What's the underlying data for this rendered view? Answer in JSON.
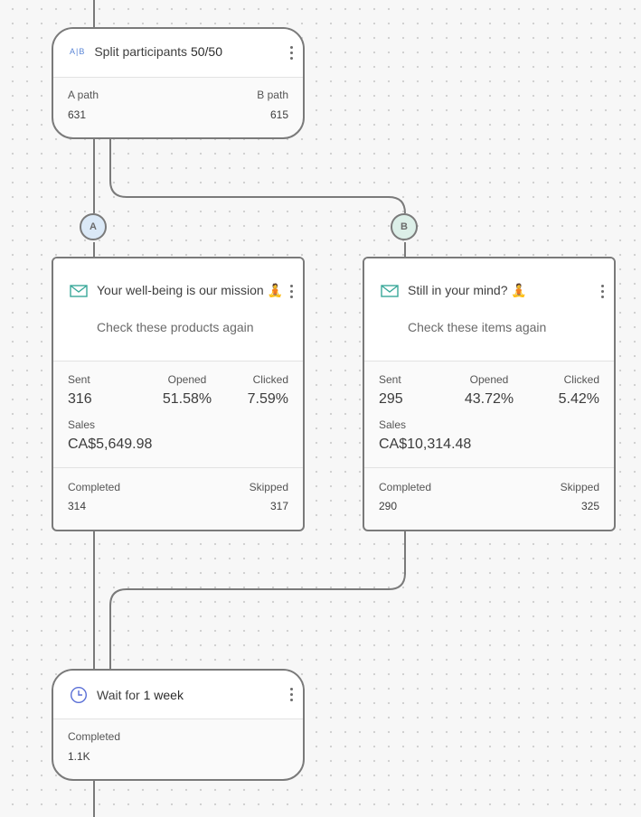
{
  "split_node": {
    "icon": "ab-split-icon",
    "icon_text": "A|B",
    "title": "Split participants",
    "ratio": "50/50",
    "a_label": "A path",
    "a_value": "631",
    "b_label": "B path",
    "b_value": "615"
  },
  "path_badges": {
    "a": "A",
    "b": "B"
  },
  "email_a": {
    "icon": "envelope-icon",
    "subject": "Your well-being is our mission 🧘",
    "preheader": "Check these products again",
    "sent_label": "Sent",
    "sent": "316",
    "opened_label": "Opened",
    "opened": "51.58%",
    "clicked_label": "Clicked",
    "clicked": "7.59%",
    "sales_label": "Sales",
    "sales": "CA$5,649.98",
    "completed_label": "Completed",
    "completed": "314",
    "skipped_label": "Skipped",
    "skipped": "317"
  },
  "email_b": {
    "icon": "envelope-icon",
    "subject": "Still in your mind? 🧘",
    "preheader": "Check these items again",
    "sent_label": "Sent",
    "sent": "295",
    "opened_label": "Opened",
    "opened": "43.72%",
    "clicked_label": "Clicked",
    "clicked": "5.42%",
    "sales_label": "Sales",
    "sales": "CA$10,314.48",
    "completed_label": "Completed",
    "completed": "290",
    "skipped_label": "Skipped",
    "skipped": "325"
  },
  "wait_node": {
    "icon": "clock-icon",
    "title_prefix": "Wait for",
    "duration": "1 week",
    "completed_label": "Completed",
    "completed": "1.1K"
  },
  "colors": {
    "connector": "#7a7a7a",
    "badge_a_fill": "#dbe9f7",
    "badge_b_fill": "#dcefe8",
    "ab_icon": "#5a86d6",
    "envelope_icon": "#3aa89a",
    "clock_icon": "#5a6fd6"
  }
}
